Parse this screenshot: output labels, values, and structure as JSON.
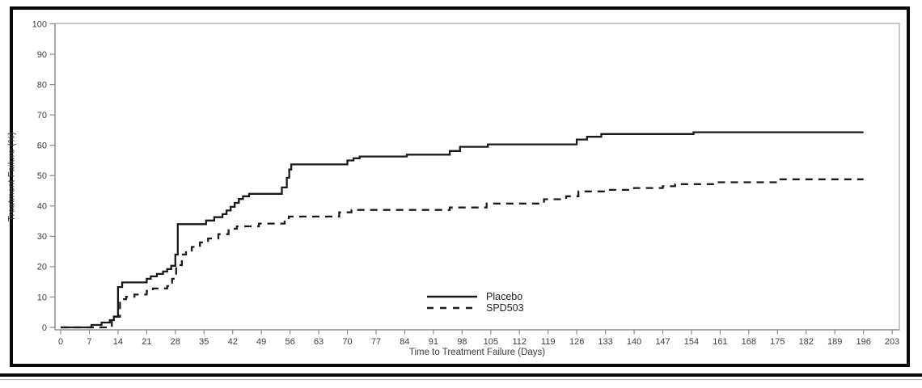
{
  "figure": {
    "y_axis_title": "Treatment Failure (%)",
    "x_axis_title": "Time to Treatment Failure (Days)",
    "y_tick_labels": [
      0,
      10,
      20,
      30,
      40,
      50,
      60,
      70,
      80,
      90,
      100
    ],
    "x_tick_labels": [
      0,
      7,
      14,
      21,
      28,
      35,
      42,
      49,
      56,
      63,
      70,
      77,
      84,
      91,
      98,
      105,
      112,
      119,
      126,
      133,
      140,
      147,
      154,
      161,
      168,
      175,
      182,
      189,
      196,
      203
    ],
    "legend": [
      {
        "label": "Placebo",
        "line_style": "solid"
      },
      {
        "label": "SPD503",
        "line_style": "dashed"
      }
    ],
    "colors": {
      "curve": "#1a1a1a",
      "axis": "#8a8a8a",
      "frame": "#ababab",
      "tick_text": "#3d3d3d",
      "border": "#0a0a0a",
      "background": "#ffffff"
    }
  },
  "chart_data": {
    "type": "line",
    "subtype": "kaplan-meier-step",
    "title": "",
    "xlabel": "Time to Treatment Failure (Days)",
    "ylabel": "Treatment Failure (%)",
    "xlim": [
      0,
      203
    ],
    "ylim": [
      0,
      100
    ],
    "x_tick_interval": 7,
    "y_tick_interval": 10,
    "grid": false,
    "legend_position": "inside-bottom-center",
    "series": [
      {
        "name": "Placebo",
        "line_style": "solid",
        "end_x": 196,
        "final_value": 64.3,
        "steps": [
          [
            0,
            0
          ],
          [
            7.5,
            0.8
          ],
          [
            10,
            1.6
          ],
          [
            12,
            2.4
          ],
          [
            13,
            3.6
          ],
          [
            14,
            13.3
          ],
          [
            15,
            14.8
          ],
          [
            21,
            16
          ],
          [
            22,
            16.8
          ],
          [
            23.5,
            17.6
          ],
          [
            25,
            18.4
          ],
          [
            26,
            19.2
          ],
          [
            27,
            20.3
          ],
          [
            28,
            24
          ],
          [
            28.6,
            34
          ],
          [
            35.5,
            35.2
          ],
          [
            37.5,
            36.3
          ],
          [
            39.5,
            37.3
          ],
          [
            40.5,
            38.5
          ],
          [
            41.5,
            39.7
          ],
          [
            42.5,
            41
          ],
          [
            43.5,
            42.3
          ],
          [
            44.5,
            43.2
          ],
          [
            46,
            44
          ],
          [
            54,
            46.1
          ],
          [
            55.2,
            49.3
          ],
          [
            55.8,
            52
          ],
          [
            56.3,
            53.7
          ],
          [
            70,
            55
          ],
          [
            71.5,
            55.7
          ],
          [
            73,
            56.3
          ],
          [
            84.5,
            56.9
          ],
          [
            95,
            58.1
          ],
          [
            97.5,
            59.5
          ],
          [
            104.3,
            60.3
          ],
          [
            126,
            61.9
          ],
          [
            128.5,
            62.8
          ],
          [
            132,
            63.7
          ],
          [
            154.5,
            64.3
          ]
        ]
      },
      {
        "name": "SPD503",
        "line_style": "dashed",
        "end_x": 196,
        "final_value": 48.8,
        "steps": [
          [
            0,
            0
          ],
          [
            12.5,
            3.5
          ],
          [
            14.5,
            9.3
          ],
          [
            16,
            10.1
          ],
          [
            18,
            10.8
          ],
          [
            21,
            12
          ],
          [
            22.5,
            12.8
          ],
          [
            26,
            13.6
          ],
          [
            27.2,
            16
          ],
          [
            28.2,
            20.5
          ],
          [
            29.6,
            24
          ],
          [
            30.6,
            25.3
          ],
          [
            32,
            26.5
          ],
          [
            34,
            28
          ],
          [
            36,
            29.3
          ],
          [
            38.5,
            30.7
          ],
          [
            41,
            32.5
          ],
          [
            43,
            33.3
          ],
          [
            48.4,
            34.2
          ],
          [
            54.7,
            34.9
          ],
          [
            55.7,
            36.5
          ],
          [
            68,
            37.9
          ],
          [
            71,
            38.7
          ],
          [
            95,
            39.5
          ],
          [
            104,
            40.8
          ],
          [
            118,
            42.2
          ],
          [
            123.4,
            43.2
          ],
          [
            126.4,
            44.8
          ],
          [
            133,
            45.3
          ],
          [
            140,
            45.9
          ],
          [
            147,
            46.5
          ],
          [
            150,
            47.2
          ],
          [
            160.3,
            47.8
          ],
          [
            175.7,
            48.8
          ]
        ]
      }
    ]
  }
}
